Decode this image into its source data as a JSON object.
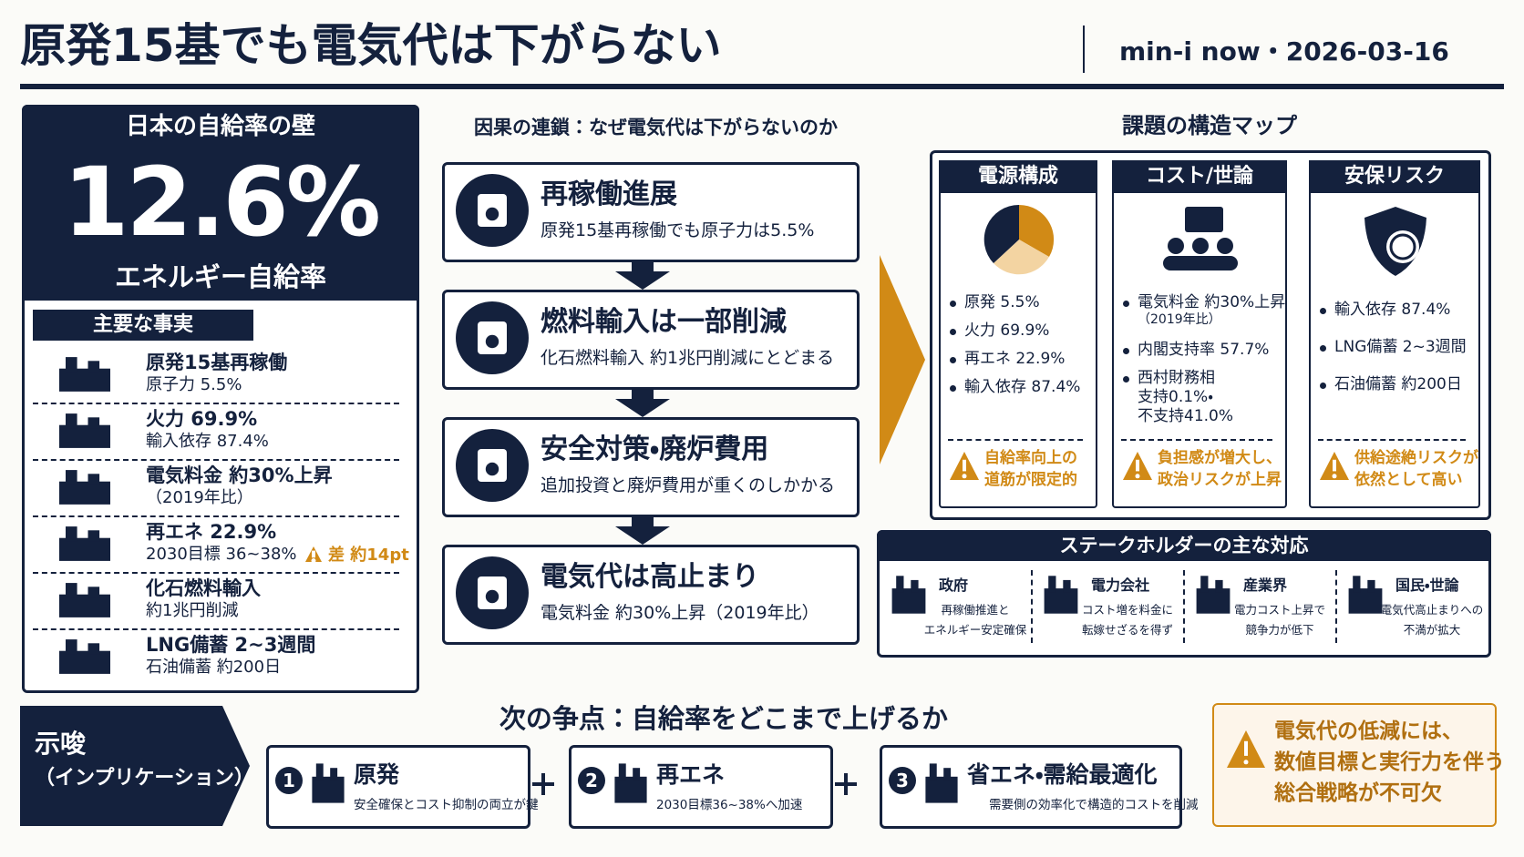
{
  "header": {
    "title": "原発15基でも電気代は下がらない",
    "source": "min-i now・2026-03-16"
  },
  "left_panel": {
    "heading": "日本の自給率の壁",
    "value": "12.6%",
    "label": "エネルギー自給率",
    "facts_title": "主要な事実",
    "facts": [
      {
        "lines": [
          "原発15基再稼働",
          "原子力 5.5%"
        ]
      },
      {
        "lines": [
          "火力 69.9%",
          "輸入依存 87.4%"
        ]
      },
      {
        "lines": [
          "電気料金 約30%上昇",
          "（2019年比）"
        ]
      },
      {
        "lines": [
          "再エネ 22.9%",
          "2030目標 36~38%"
        ],
        "note": "差 約14pt"
      },
      {
        "lines": [
          "化石燃料輸入",
          "約1兆円削減"
        ]
      },
      {
        "lines": [
          "LNG備蓄 2~3週間",
          "石油備蓄 約200日"
        ]
      }
    ]
  },
  "chain": {
    "title": "因果の連鎖：なぜ電気代は下がらないのか",
    "steps": [
      {
        "title": "再稼働進展",
        "desc": "原発15基再稼働でも原子力は5.5%"
      },
      {
        "title": "燃料輸入は一部削減",
        "desc": "化石燃料輸入 約1兆円削減にとどまる"
      },
      {
        "title": "安全対策・廃炉費用",
        "desc": "追加投資と廃炉費用が重くのしかかる"
      },
      {
        "title": "電気代は高止まり",
        "desc": "電気料金 約30%上昇（2019年比）"
      }
    ]
  },
  "map": {
    "title": "課題の構造マップ",
    "columns": [
      {
        "title": "電源構成",
        "items": [
          [
            "原発 5.5%"
          ],
          [
            "火力 69.9%"
          ],
          [
            "再エネ 22.9%"
          ],
          [
            "輸入依存 87.4%"
          ]
        ],
        "warning": [
          "自給率向上の",
          "道筋が限定的"
        ]
      },
      {
        "title": "コスト/世論",
        "items": [
          [
            "電気料金 約30%上昇",
            "（2019年比）"
          ],
          [
            "内閣支持率 57.7%"
          ],
          [
            "西村財務相",
            "支持0.1%・",
            "不支持41.0%"
          ]
        ],
        "warning": [
          "負担感が増大し、",
          "政治リスクが上昇"
        ]
      },
      {
        "title": "安保リスク",
        "items": [
          [
            "輸入依存 87.4%"
          ],
          [
            "LNG備蓄 2~3週間"
          ],
          [
            "石油備蓄 約200日"
          ]
        ],
        "warning": [
          "供給途絶リスクが",
          "依然として高い"
        ]
      }
    ]
  },
  "stakeholders": {
    "title": "ステークホルダーの主な対応",
    "items": [
      {
        "name": "政府",
        "lines": [
          "再稼働推進と",
          "エネルギー安定確保"
        ]
      },
      {
        "name": "電力会社",
        "lines": [
          "コスト増を料金に",
          "転嫁せざるを得ず"
        ]
      },
      {
        "name": "産業界",
        "lines": [
          "電力コスト上昇で",
          "競争力が低下"
        ]
      },
      {
        "name": "国民・世論",
        "lines": [
          "電気代高止まりへの",
          "不満が拡大"
        ]
      }
    ]
  },
  "implication": {
    "lines": [
      "示唆",
      "（インプリケーション）"
    ]
  },
  "next_issue": {
    "title": "次の争点：自給率をどこまで上げるか",
    "options": [
      {
        "number": "1",
        "title": "原発",
        "desc": "安全確保とコスト抑制の両立が鍵"
      },
      {
        "number": "2",
        "title": "再エネ",
        "desc": "2030目標36~38%へ加速"
      },
      {
        "number": "3",
        "title": "省エネ・需給最適化",
        "desc": "需要側の効率化で構造的コストを削減"
      }
    ]
  },
  "conclusion": {
    "lines": [
      "電気代の低減には、",
      "数値目標と実行力を伴う",
      "総合戦略が不可欠"
    ]
  }
}
